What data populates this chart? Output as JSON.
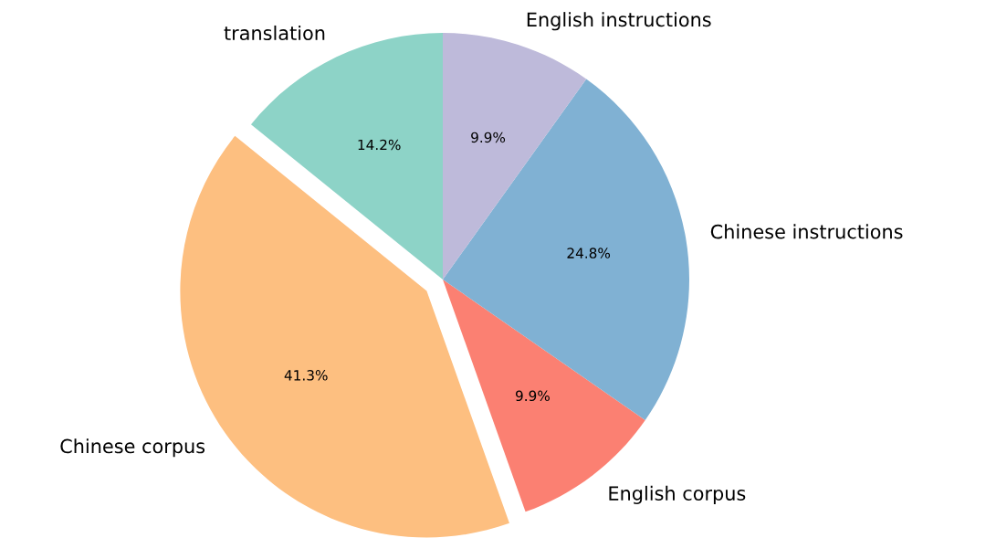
{
  "chart_data": {
    "type": "pie",
    "categories": [
      "translation",
      "Chinese corpus",
      "English corpus",
      "Chinese instructions",
      "English instructions"
    ],
    "values": [
      14.2,
      41.3,
      9.9,
      24.8,
      9.9
    ],
    "value_labels": [
      "14.2%",
      "41.3%",
      "9.9%",
      "24.8%",
      "9.9%"
    ],
    "colors": [
      "#8dd3c7",
      "#fdbf80",
      "#fb8072",
      "#80b1d3",
      "#bebada"
    ]
  }
}
